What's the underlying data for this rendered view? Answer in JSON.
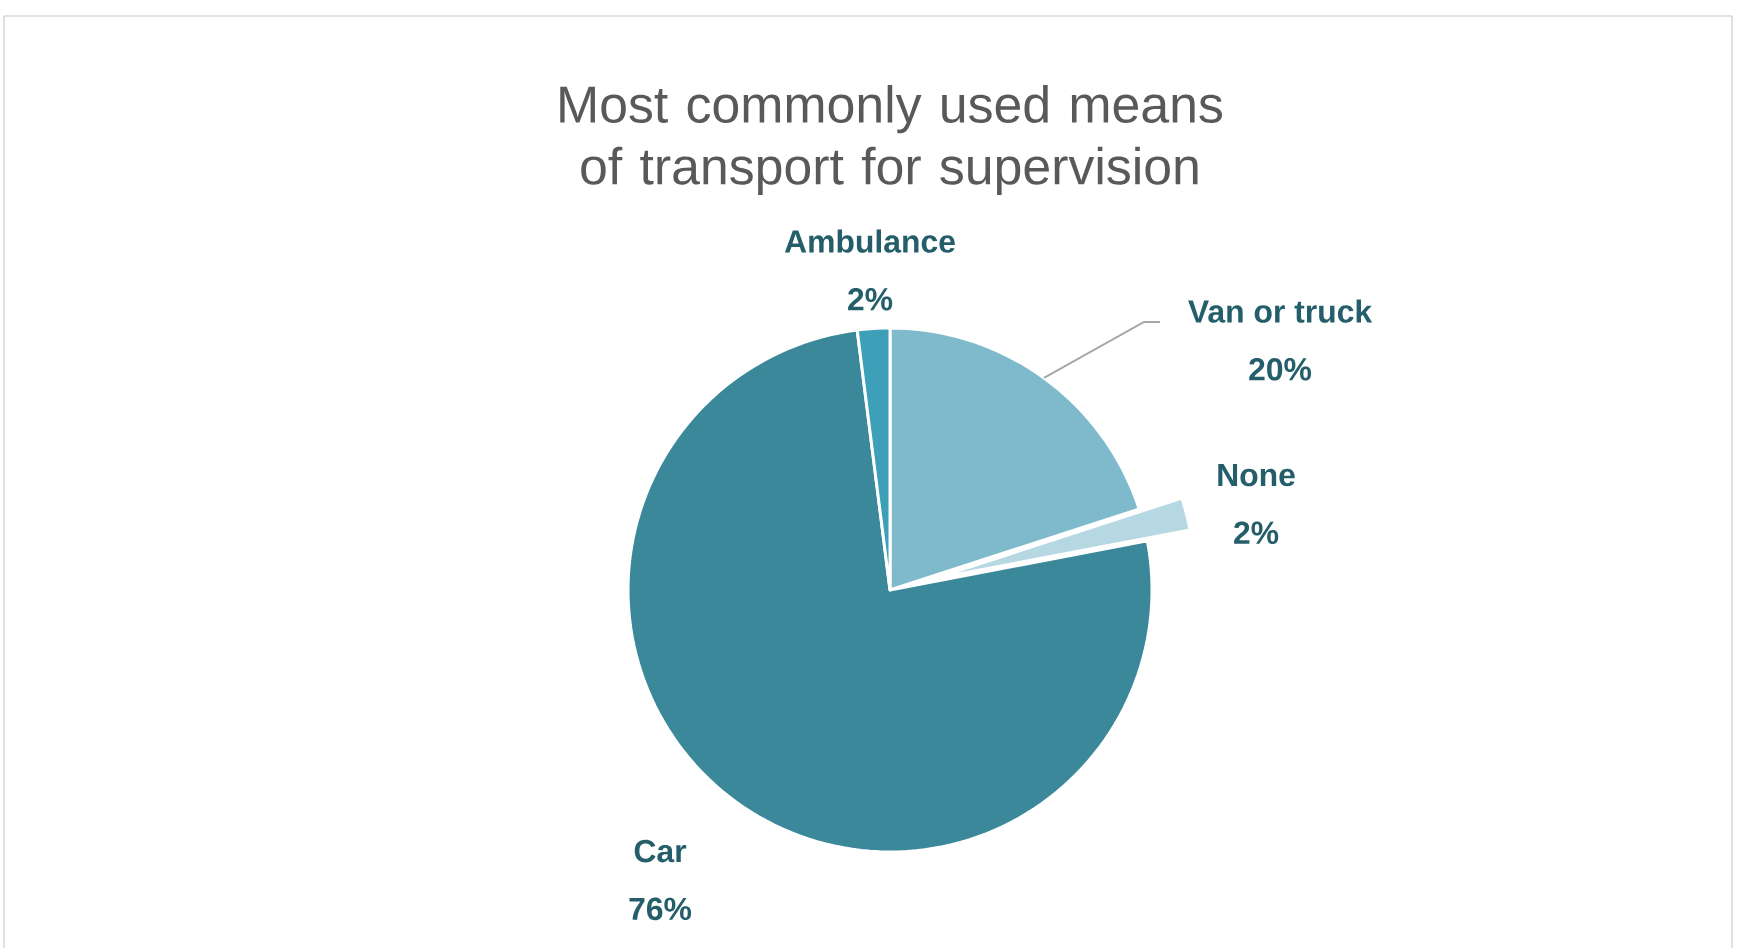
{
  "chart_data": {
    "type": "pie",
    "title": "Most commonly used means of transport for supervision",
    "categories": [
      "Van or truck",
      "None",
      "Car",
      "Ambulance"
    ],
    "values": [
      20,
      2,
      76,
      2
    ],
    "colors": [
      "#7fbacc",
      "#b5d8e2",
      "#3a8899",
      "#3d9fb8"
    ],
    "value_labels": [
      "20%",
      "2%",
      "76%",
      "2%"
    ]
  }
}
